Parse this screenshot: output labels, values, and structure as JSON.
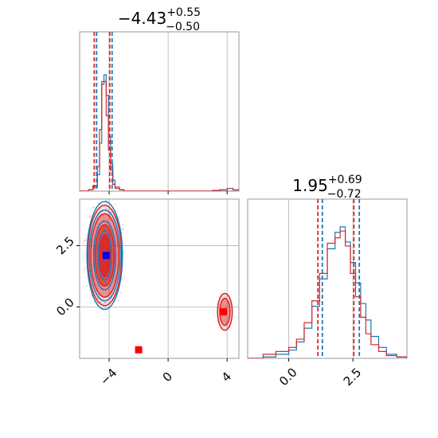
{
  "chart_data": [
    {
      "type": "histogram",
      "panel": "marginal-param-1",
      "title": {
        "main": "−4.43",
        "sup": "+0.55",
        "sub": "−0.50"
      },
      "xlim": [
        -6,
        4.8
      ],
      "grid": true,
      "bins_x": [
        -6.0,
        -5.7,
        -5.4,
        -5.1,
        -4.8,
        -4.65,
        -4.5,
        -4.35,
        -4.2,
        -4.05,
        -3.9,
        -3.75,
        -3.6,
        -3.3,
        -3.0,
        -2.5,
        -1.5,
        0.0,
        2.0,
        3.0,
        3.5,
        4.0,
        4.4,
        4.8
      ],
      "series": [
        {
          "color": "#1f77b4",
          "values": [
            0.0,
            0.0,
            0.01,
            0.03,
            0.12,
            0.35,
            0.78,
            0.85,
            0.7,
            0.4,
            0.2,
            0.08,
            0.03,
            0.01,
            0.0,
            0.0,
            0.0,
            0.0,
            0.0,
            0.0,
            0.0,
            0.0,
            0.0,
            0.0
          ]
        },
        {
          "color": "#d62728",
          "values": [
            0.0,
            0.0,
            0.01,
            0.04,
            0.18,
            0.45,
            0.8,
            0.8,
            0.55,
            0.3,
            0.15,
            0.05,
            0.02,
            0.01,
            0.0,
            0.0,
            0.0,
            0.0,
            0.0,
            0.005,
            0.01,
            0.02,
            0.01,
            0.0
          ]
        }
      ],
      "quantile_lines": [
        {
          "color": "#1f77b4",
          "x": [
            -4.93,
            -3.88
          ]
        },
        {
          "color": "#d62728",
          "x": [
            -4.93,
            -3.88
          ]
        }
      ]
    },
    {
      "type": "histogram",
      "panel": "marginal-param-2",
      "title": {
        "main": "1.95",
        "sup": "+0.69",
        "sub": "−0.72"
      },
      "xlim": [
        -1.6,
        4.6
      ],
      "grid": true,
      "xticks": [
        "0.0",
        "2.5"
      ],
      "bins_x": [
        -1.6,
        -1.0,
        -0.5,
        0.0,
        0.3,
        0.6,
        0.9,
        1.2,
        1.5,
        1.8,
        2.0,
        2.2,
        2.4,
        2.6,
        2.8,
        3.0,
        3.2,
        3.5,
        3.8,
        4.2,
        4.6
      ],
      "series": [
        {
          "color": "#1f77b4",
          "values": [
            0.0,
            0.01,
            0.03,
            0.06,
            0.12,
            0.22,
            0.38,
            0.58,
            0.8,
            0.92,
            0.96,
            0.85,
            0.7,
            0.55,
            0.4,
            0.28,
            0.16,
            0.08,
            0.03,
            0.01,
            0.0
          ]
        },
        {
          "color": "#d62728",
          "values": [
            0.0,
            0.03,
            0.05,
            0.08,
            0.14,
            0.26,
            0.42,
            0.62,
            0.84,
            0.88,
            0.93,
            0.82,
            0.62,
            0.45,
            0.3,
            0.18,
            0.1,
            0.05,
            0.02,
            0.01,
            0.0
          ]
        }
      ],
      "quantile_lines": [
        {
          "color": "#1f77b4",
          "x": [
            1.26,
            2.7
          ]
        },
        {
          "color": "#d62728",
          "x": [
            1.18,
            2.58
          ]
        }
      ]
    },
    {
      "type": "contour",
      "panel": "joint-param-1-2",
      "xlim": [
        -6,
        4.8
      ],
      "ylim": [
        -2.1,
        4.4
      ],
      "xticks": [
        "−4",
        "0",
        "4"
      ],
      "yticks": [
        "0.0",
        "2.5"
      ],
      "grid": true,
      "series": [
        {
          "color": "#1f77b4",
          "kind": "contours",
          "center": [
            -4.3,
            2.1
          ],
          "levels": [
            [
              0.45,
              1.0
            ],
            [
              0.75,
              1.4
            ],
            [
              1.05,
              1.85
            ],
            [
              1.2,
              2.2
            ]
          ]
        },
        {
          "color": "#d62728",
          "kind": "contours",
          "center": [
            -4.3,
            2.1
          ],
          "levels": [
            [
              0.35,
              0.85
            ],
            [
              0.65,
              1.25
            ],
            [
              0.95,
              1.7
            ],
            [
              1.15,
              2.05
            ]
          ]
        },
        {
          "color": "#d62728",
          "kind": "contours",
          "center": [
            3.85,
            -0.2
          ],
          "levels": [
            [
              0.35,
              0.55
            ],
            [
              0.5,
              0.75
            ]
          ]
        }
      ],
      "markers": [
        {
          "color": "#0000ff",
          "x": -4.2,
          "y": 2.1
        },
        {
          "color": "#ff0000",
          "x": -2.0,
          "y": -1.75
        },
        {
          "color": "#ff0000",
          "x": 3.75,
          "y": -0.2
        }
      ]
    }
  ]
}
